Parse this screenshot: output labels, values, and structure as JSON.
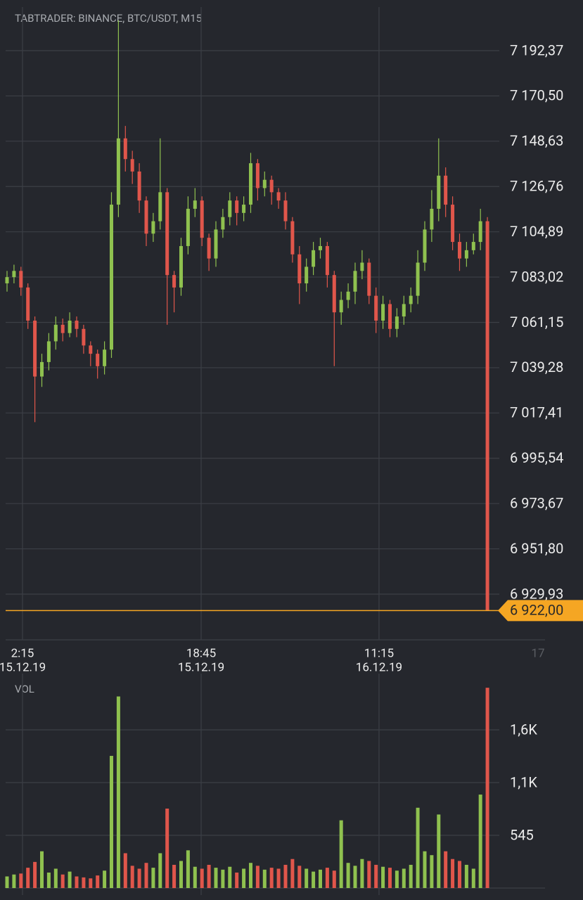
{
  "chart_data": {
    "type": "candlestick",
    "title": "TABTRADER: BINANCE, BTC/USDT, M15",
    "up_color": "#8fc14f",
    "down_color": "#e0564b",
    "grid": true,
    "x": [
      0,
      1,
      2,
      3,
      4,
      5,
      6,
      7,
      8,
      9,
      10,
      11,
      12,
      13,
      14,
      15,
      16,
      17,
      18,
      19,
      20,
      21,
      22,
      23,
      24,
      25,
      26,
      27,
      28,
      29,
      30,
      31,
      32,
      33,
      34,
      35,
      36,
      37,
      38,
      39,
      40,
      41,
      42,
      43,
      44,
      45,
      46,
      47,
      48,
      49,
      50,
      51,
      52,
      53,
      54,
      55,
      56,
      57,
      58,
      59,
      60,
      61,
      62,
      63,
      64,
      65,
      66,
      67,
      68,
      69
    ],
    "open": [
      7080,
      7083,
      7086,
      7078,
      7062,
      7035,
      7042,
      7052,
      7060,
      7056,
      7062,
      7058,
      7050,
      7046,
      7040,
      7048,
      7118,
      7150,
      7140,
      7134,
      7120,
      7104,
      7110,
      7124,
      7084,
      7078,
      7098,
      7116,
      7120,
      7102,
      7092,
      7106,
      7112,
      7120,
      7114,
      7118,
      7138,
      7126,
      7130,
      7124,
      7120,
      7110,
      7094,
      7080,
      7088,
      7096,
      7098,
      7084,
      7066,
      7072,
      7076,
      7086,
      7090,
      7074,
      7062,
      7070,
      7058,
      7064,
      7070,
      7074,
      7090,
      7106,
      7116,
      7132,
      7118,
      7100,
      7092,
      7096,
      7100,
      7110
    ],
    "high": [
      7086,
      7089,
      7088,
      7080,
      7064,
      7046,
      7056,
      7064,
      7063,
      7066,
      7064,
      7060,
      7052,
      7048,
      7052,
      7124,
      7207,
      7156,
      7144,
      7138,
      7122,
      7114,
      7150,
      7126,
      7086,
      7102,
      7122,
      7126,
      7122,
      7104,
      7110,
      7116,
      7124,
      7122,
      7122,
      7143,
      7140,
      7134,
      7132,
      7126,
      7124,
      7112,
      7098,
      7092,
      7100,
      7102,
      7100,
      7086,
      7076,
      7080,
      7090,
      7096,
      7092,
      7078,
      7074,
      7072,
      7068,
      7074,
      7078,
      7096,
      7110,
      7125,
      7150,
      7136,
      7122,
      7104,
      7100,
      7104,
      7116,
      7112
    ],
    "low": [
      7076,
      7080,
      7074,
      7058,
      7013,
      7030,
      7038,
      7048,
      7052,
      7054,
      7054,
      7046,
      7040,
      7034,
      7036,
      7044,
      7112,
      7134,
      7128,
      7114,
      7098,
      7100,
      7106,
      7060,
      7066,
      7074,
      7094,
      7112,
      7098,
      7086,
      7088,
      7102,
      7108,
      7108,
      7110,
      7114,
      7120,
      7122,
      7118,
      7116,
      7106,
      7090,
      7070,
      7076,
      7084,
      7092,
      7078,
      7040,
      7060,
      7068,
      7070,
      7082,
      7070,
      7056,
      7058,
      7054,
      7054,
      7060,
      7066,
      7070,
      7086,
      7100,
      7110,
      7112,
      7096,
      7086,
      7088,
      7094,
      7096,
      6922
    ],
    "close": [
      7083,
      7086,
      7078,
      7062,
      7035,
      7042,
      7052,
      7060,
      7056,
      7062,
      7058,
      7050,
      7046,
      7040,
      7048,
      7118,
      7150,
      7140,
      7134,
      7120,
      7104,
      7110,
      7124,
      7084,
      7078,
      7098,
      7116,
      7120,
      7102,
      7092,
      7106,
      7112,
      7120,
      7114,
      7118,
      7138,
      7126,
      7130,
      7124,
      7120,
      7110,
      7094,
      7080,
      7088,
      7096,
      7098,
      7084,
      7066,
      7072,
      7076,
      7086,
      7090,
      7074,
      7062,
      7070,
      7058,
      7064,
      7070,
      7074,
      7090,
      7106,
      7116,
      7132,
      7118,
      7100,
      7092,
      7096,
      7100,
      7110,
      6922
    ],
    "xlim": [
      -1.01,
      82.73
    ],
    "xticks": [
      {
        "value": 2.22,
        "label": "2:15"
      },
      {
        "value": 27.88,
        "label": "18:45"
      },
      {
        "value": 53.43,
        "label": "11:15"
      },
      {
        "value": 76.26,
        "label": "17"
      }
    ],
    "xtick_dates": [
      "15.12.19",
      "15.12.19",
      "16.12.19",
      null
    ],
    "ylim": [
      6907.86,
      7213.42
    ],
    "yticks": [
      {
        "value": 7192.37,
        "label": "7 192,37"
      },
      {
        "value": 7170.5,
        "label": "7 170,50"
      },
      {
        "value": 7148.63,
        "label": "7 148,63"
      },
      {
        "value": 7126.76,
        "label": "7 126,76"
      },
      {
        "value": 7104.89,
        "label": "7 104,89"
      },
      {
        "value": 7083.02,
        "label": "7 083,02"
      },
      {
        "value": 7061.15,
        "label": "7 061,15"
      },
      {
        "value": 7039.28,
        "label": "7 039,28"
      },
      {
        "value": 7017.41,
        "label": "7 017,41"
      },
      {
        "value": 6995.54,
        "label": "6 995,54"
      },
      {
        "value": 6973.67,
        "label": "6 973,67"
      },
      {
        "value": 6951.8,
        "label": "6 951,80"
      },
      {
        "value": 6929.93,
        "label": "6 929,93"
      }
    ],
    "last_price": {
      "value": 6922,
      "label": "6 922,00",
      "color": "#f5a623"
    },
    "volume": {
      "label": "VOL",
      "values": [
        120,
        140,
        150,
        210,
        270,
        380,
        160,
        200,
        140,
        170,
        120,
        110,
        100,
        130,
        180,
        1366,
        1980,
        360,
        230,
        200,
        260,
        210,
        360,
        821,
        240,
        280,
        390,
        220,
        200,
        240,
        210,
        190,
        220,
        160,
        200,
        260,
        230,
        190,
        210,
        200,
        240,
        300,
        230,
        200,
        170,
        190,
        210,
        180,
        700,
        260,
        230,
        300,
        280,
        240,
        220,
        210,
        180,
        200,
        240,
        830,
        380,
        340,
        760,
        380,
        300,
        280,
        240,
        200,
        966,
        2070
      ],
      "ylim": [
        0,
        2180
      ],
      "yticks": [
        545,
        {
          "value": 1090,
          "label": "1,1K"
        },
        {
          "value": 1635,
          "label": "1,6K"
        }
      ]
    }
  }
}
